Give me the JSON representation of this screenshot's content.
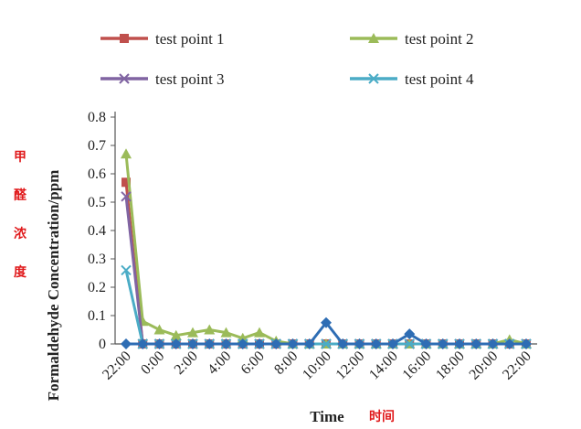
{
  "chart_data": {
    "type": "line",
    "xlabel": "Time",
    "xlabel_cn": "时间",
    "ylabel": "Formaldehyde Concentration/ppm",
    "ylabel_cn": [
      "甲",
      "醛",
      "浓",
      "度"
    ],
    "ylim": [
      0,
      0.8
    ],
    "yticks": [
      "0",
      "0.1",
      "0.2",
      "0.3",
      "0.4",
      "0.5",
      "0.6",
      "0.7",
      "0.8"
    ],
    "x_ticks": [
      "22:00",
      "0:00",
      "2:00",
      "4:00",
      "6:00",
      "8:00",
      "10:00",
      "12:00",
      "14:00",
      "16:00",
      "18:00",
      "20:00",
      "22:00"
    ],
    "x_hours": [
      22,
      23,
      24,
      25,
      26,
      27,
      28,
      29,
      30,
      31,
      32,
      33,
      34,
      35,
      36,
      37,
      38,
      39,
      40,
      41,
      42,
      43,
      44,
      45,
      46
    ],
    "legend_position": "top",
    "grid": false,
    "series": [
      {
        "name": "test point 1",
        "color": "#c0504d",
        "marker": "square",
        "values": [
          0.57,
          0,
          0,
          0,
          0,
          0,
          0,
          0,
          0,
          0,
          0,
          0,
          0,
          0,
          0,
          0,
          0,
          0,
          0,
          0,
          0,
          0,
          0,
          0,
          0
        ]
      },
      {
        "name": "test point 2",
        "color": "#9bbb59",
        "marker": "triangle",
        "values": [
          0.67,
          0.08,
          0.05,
          0.03,
          0.04,
          0.05,
          0.04,
          0.02,
          0.04,
          0.01,
          0,
          0,
          0,
          0,
          0,
          0,
          0,
          0,
          0,
          0,
          0,
          0,
          0,
          0.015,
          0
        ]
      },
      {
        "name": "test point 3",
        "color": "#8064a2",
        "marker": "x",
        "values": [
          0.52,
          0,
          0,
          0,
          0,
          0,
          0,
          0,
          0,
          0,
          0,
          0,
          0,
          0,
          0,
          0,
          0,
          0,
          0,
          0,
          0,
          0,
          0,
          0,
          0
        ]
      },
      {
        "name": "test point 4",
        "color": "#4bacc6",
        "marker": "x",
        "values": [
          0.26,
          0,
          0,
          0,
          0,
          0,
          0,
          0,
          0,
          0,
          0,
          0,
          0,
          0,
          0,
          0,
          0,
          0,
          0,
          0,
          0,
          0,
          0,
          0,
          0
        ]
      },
      {
        "name": "",
        "color": "#2e6db4",
        "marker": "diamond",
        "values": [
          0,
          0,
          0,
          0,
          0,
          0,
          0,
          0,
          0,
          0,
          0,
          0,
          0.075,
          0,
          0,
          0,
          0,
          0.035,
          0,
          0,
          0,
          0,
          0,
          0,
          0
        ]
      }
    ]
  }
}
